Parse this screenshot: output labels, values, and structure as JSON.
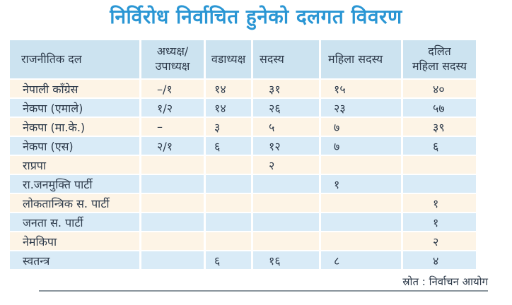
{
  "title": "निर्विरोध निर्वाचित हुनेको दलगत विवरण",
  "source_note": "स्रोत : निर्वाचन आयोग",
  "colors": {
    "title_blue": "#2a96d4",
    "header_bg": "#cce3f0",
    "row_cream_bg": "#fdf4e6",
    "row_blue_bg": "#d9ebf7",
    "text_dark": "#2d3a4a",
    "rule_gray": "#8a949c"
  },
  "table": {
    "headers": [
      "राजनीतिक दल",
      "अध्यक्ष/\nउपाध्यक्ष",
      "वडाध्यक्ष",
      "सदस्य",
      "महिला सदस्य",
      "दलित\nमहिला सदस्य"
    ],
    "rows": [
      {
        "party": "नेपाली काँग्रेस",
        "cells": [
          "–/१",
          "१४",
          "३१",
          "१५",
          "४०"
        ]
      },
      {
        "party": "नेकपा (एमाले)",
        "cells": [
          "१/२",
          "१४",
          "२६",
          "२३",
          "५७"
        ]
      },
      {
        "party": "नेकपा (मा.के.)",
        "cells": [
          "–",
          "३",
          "५",
          "७",
          "३९"
        ]
      },
      {
        "party": "नेकपा (एस)",
        "cells": [
          "२/१",
          "६",
          "१२",
          "७",
          "६"
        ]
      },
      {
        "party": "राप्रपा",
        "cells": [
          "",
          "",
          "२",
          "",
          ""
        ]
      },
      {
        "party": "रा.जनमुक्ति पार्टी",
        "cells": [
          "",
          "",
          "",
          "१",
          ""
        ]
      },
      {
        "party": "लोकतान्त्रिक स. पार्टी",
        "cells": [
          "",
          "",
          "",
          "",
          "१"
        ]
      },
      {
        "party": "जनता स. पार्टी",
        "cells": [
          "",
          "",
          "",
          "",
          "१"
        ]
      },
      {
        "party": "नेमकिपा",
        "cells": [
          "",
          "",
          "",
          "",
          "२"
        ]
      },
      {
        "party": "स्वतन्त्र",
        "cells": [
          "",
          "६",
          "१६",
          "८",
          "४"
        ]
      }
    ]
  }
}
